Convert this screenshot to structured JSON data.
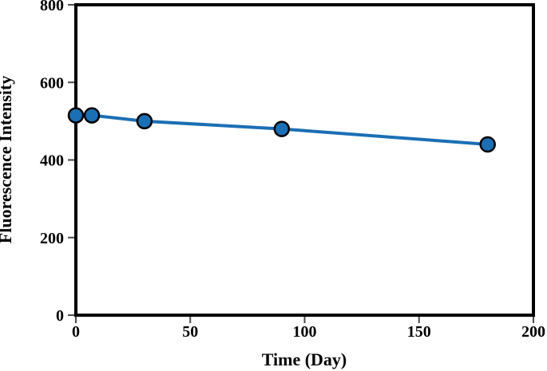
{
  "chart_data": {
    "type": "line",
    "xlabel": "Time (Day)",
    "ylabel": "Fluorescence Intensity",
    "x": [
      0,
      7,
      30,
      90,
      180
    ],
    "y": [
      515,
      515,
      500,
      480,
      440
    ],
    "xlim": [
      0,
      200
    ],
    "ylim": [
      0,
      800
    ],
    "xticks": [
      0,
      50,
      100,
      150,
      200
    ],
    "yticks": [
      0,
      200,
      400,
      600,
      800
    ],
    "grid": false,
    "legend": false,
    "marker": "circle",
    "marker_fill": "#1b6fb5",
    "marker_edge": "#000000",
    "line_color": "#1b6fb5",
    "axis_color": "#000000",
    "background": "#ffffff"
  }
}
